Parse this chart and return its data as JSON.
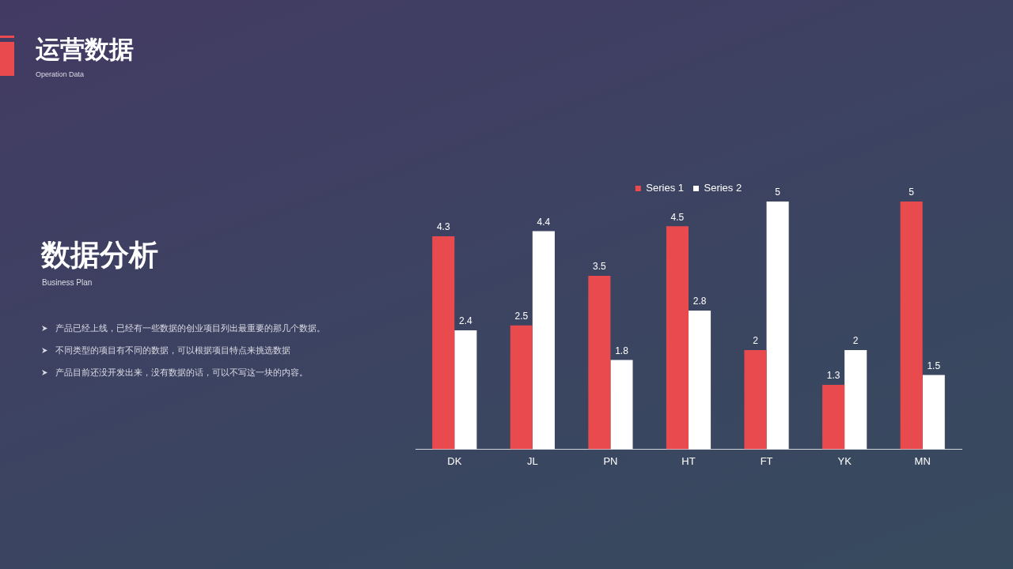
{
  "chart_data": {
    "type": "bar",
    "title": "运营数据",
    "subtitle": "Operation Data",
    "annotations": [
      "数据分析",
      "Business Plan",
      "产品已经上线，已经有一些数据的创业项目列出最重要的那几个数据。",
      "不同类型的项目有不同的数据，可以根据项目特点来挑选数据",
      "产品目前还没开发出来，没有数据的话，可以不写这一块的内容。"
    ],
    "categories": [
      "DK",
      "JL",
      "PN",
      "HT",
      "FT",
      "YK",
      "MN"
    ],
    "series": [
      {
        "name": "Series 1",
        "color": "#e84a4d",
        "values": [
          4.3,
          2.5,
          3.5,
          4.5,
          2,
          1.3,
          5
        ]
      },
      {
        "name": "Series 2",
        "color": "#ffffff",
        "values": [
          2.4,
          4.4,
          1.8,
          2.8,
          5,
          2,
          1.5
        ]
      }
    ],
    "data_labels": true,
    "legend": "top",
    "grid": false
  }
}
